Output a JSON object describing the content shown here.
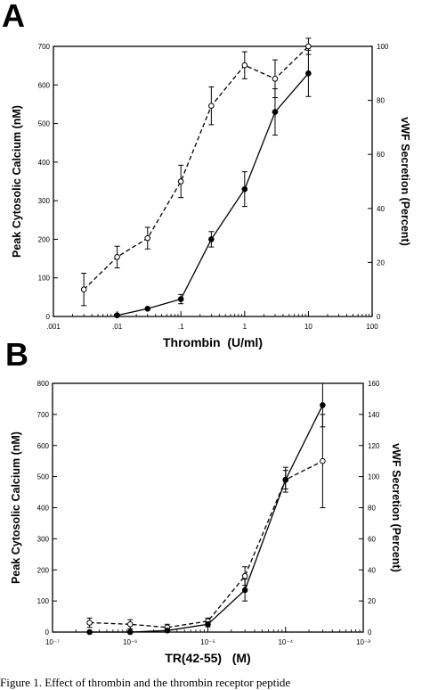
{
  "panels": [
    {
      "letter": "A"
    },
    {
      "letter": "B"
    }
  ],
  "caption": "Figure 1. Effect of thrombin and the thrombin receptor peptide",
  "chart_data": [
    {
      "type": "line",
      "panel": "A",
      "xlabel": "Thrombin  (U/ml)",
      "ylabel": "Peak Cytosolic Calcium (nM)",
      "y2label": "vWF Secretion (Percent)",
      "xscale": "log",
      "xlim": [
        0.001,
        100
      ],
      "ylim": [
        0,
        700
      ],
      "y2lim": [
        0,
        100
      ],
      "x_ticks": [
        {
          "v": 0.001,
          "label": ".001"
        },
        {
          "v": 0.01,
          "label": ".01"
        },
        {
          "v": 0.1,
          "label": ".1"
        },
        {
          "v": 1,
          "label": "1"
        },
        {
          "v": 10,
          "label": "10"
        },
        {
          "v": 100,
          "label": "100"
        }
      ],
      "y_ticks": [
        {
          "v": 0,
          "label": "0"
        },
        {
          "v": 100,
          "label": "100"
        },
        {
          "v": 200,
          "label": "200"
        },
        {
          "v": 300,
          "label": "300"
        },
        {
          "v": 400,
          "label": "400"
        },
        {
          "v": 500,
          "label": "500"
        },
        {
          "v": 600,
          "label": "600"
        },
        {
          "v": 700,
          "label": "700"
        }
      ],
      "y2_ticks": [
        {
          "v": 0,
          "label": "0"
        },
        {
          "v": 20,
          "label": "20"
        },
        {
          "v": 40,
          "label": "40"
        },
        {
          "v": 60,
          "label": "60"
        },
        {
          "v": 80,
          "label": "80"
        },
        {
          "v": 100,
          "label": "100"
        }
      ],
      "series": [
        {
          "axis": "y2",
          "style": "dashed",
          "marker": "open-circle",
          "points": [
            {
              "x": 0.003,
              "y": 10,
              "err": 6
            },
            {
              "x": 0.01,
              "y": 22,
              "err": 4
            },
            {
              "x": 0.03,
              "y": 29,
              "err": 4
            },
            {
              "x": 0.1,
              "y": 50,
              "err": 6
            },
            {
              "x": 0.3,
              "y": 78,
              "err": 7
            },
            {
              "x": 1,
              "y": 93,
              "err": 5
            },
            {
              "x": 3,
              "y": 88,
              "err": 7
            },
            {
              "x": 10,
              "y": 100,
              "err": 3
            }
          ]
        },
        {
          "axis": "y",
          "style": "solid",
          "marker": "filled-circle",
          "points": [
            {
              "x": 0.01,
              "y": 3,
              "err": 0
            },
            {
              "x": 0.03,
              "y": 20,
              "err": 0
            },
            {
              "x": 0.1,
              "y": 45,
              "err": 12
            },
            {
              "x": 0.3,
              "y": 200,
              "err": 20
            },
            {
              "x": 1,
              "y": 330,
              "err": 45
            },
            {
              "x": 3,
              "y": 530,
              "err": 60
            },
            {
              "x": 10,
              "y": 630,
              "err": 60
            }
          ]
        }
      ]
    },
    {
      "type": "line",
      "panel": "B",
      "xlabel": "TR(42-55)   (M)",
      "ylabel": "Peak Cytosolic Calcium (nM)",
      "y2label": "vWF Secretion (Percent)",
      "xscale": "log",
      "xlim": [
        1e-07,
        0.001
      ],
      "ylim": [
        0,
        800
      ],
      "y2lim": [
        0,
        160
      ],
      "x_ticks": [
        {
          "v": 1e-07,
          "label": "10⁻⁷"
        },
        {
          "v": 1e-06,
          "label": "10⁻⁶"
        },
        {
          "v": 1e-05,
          "label": "10⁻⁵"
        },
        {
          "v": 0.0001,
          "label": "10⁻⁴"
        },
        {
          "v": 0.001,
          "label": "10⁻³"
        }
      ],
      "y_ticks": [
        {
          "v": 0,
          "label": "0"
        },
        {
          "v": 100,
          "label": "100"
        },
        {
          "v": 200,
          "label": "200"
        },
        {
          "v": 300,
          "label": "300"
        },
        {
          "v": 400,
          "label": "400"
        },
        {
          "v": 500,
          "label": "500"
        },
        {
          "v": 600,
          "label": "600"
        },
        {
          "v": 700,
          "label": "700"
        },
        {
          "v": 800,
          "label": "800"
        }
      ],
      "y2_ticks": [
        {
          "v": 0,
          "label": "0"
        },
        {
          "v": 20,
          "label": "20"
        },
        {
          "v": 40,
          "label": "40"
        },
        {
          "v": 60,
          "label": "60"
        },
        {
          "v": 80,
          "label": "80"
        },
        {
          "v": 100,
          "label": "100"
        },
        {
          "v": 120,
          "label": "120"
        },
        {
          "v": 140,
          "label": "140"
        },
        {
          "v": 160,
          "label": "160"
        }
      ],
      "series": [
        {
          "axis": "y2",
          "style": "dashed",
          "marker": "open-circle",
          "points": [
            {
              "x": 3e-07,
              "y": 6,
              "err": 3
            },
            {
              "x": 1e-06,
              "y": 5,
              "err": 3
            },
            {
              "x": 3e-06,
              "y": 3,
              "err": 2
            },
            {
              "x": 1e-05,
              "y": 7,
              "err": 2
            },
            {
              "x": 3e-05,
              "y": 36,
              "err": 6
            },
            {
              "x": 0.0001,
              "y": 98,
              "err": 8
            },
            {
              "x": 0.0003,
              "y": 110,
              "err": 30
            }
          ]
        },
        {
          "axis": "y",
          "style": "solid",
          "marker": "filled-circle",
          "points": [
            {
              "x": 3e-07,
              "y": 0,
              "err": 0
            },
            {
              "x": 1e-06,
              "y": 0,
              "err": 0
            },
            {
              "x": 3e-06,
              "y": 5,
              "err": 0
            },
            {
              "x": 1e-05,
              "y": 25,
              "err": 8
            },
            {
              "x": 3e-05,
              "y": 135,
              "err": 35
            },
            {
              "x": 0.0001,
              "y": 490,
              "err": 30
            },
            {
              "x": 0.0003,
              "y": 730,
              "err": 70
            }
          ]
        }
      ]
    }
  ]
}
